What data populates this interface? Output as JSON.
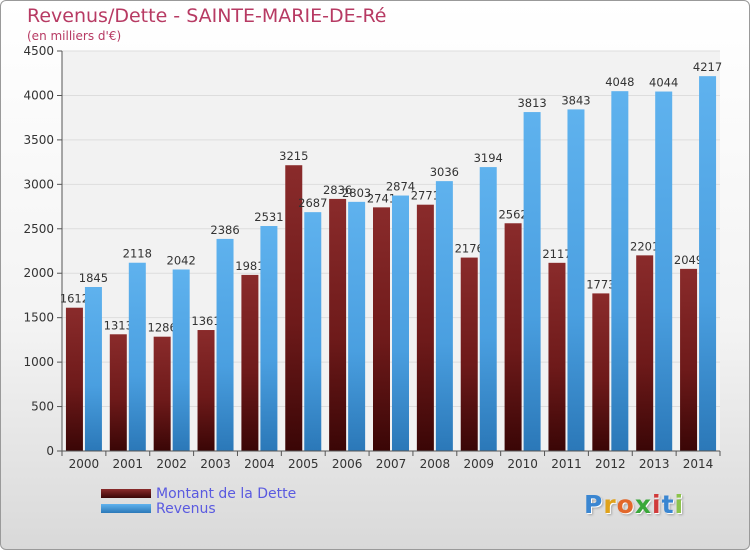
{
  "chart_data": {
    "type": "bar",
    "title": "Revenus/Dette - SAINTE-MARIE-DE-Ré",
    "subtitle": "(en milliers d'€)",
    "categories": [
      "2000",
      "2001",
      "2002",
      "2003",
      "2004",
      "2005",
      "2006",
      "2007",
      "2008",
      "2009",
      "2010",
      "2011",
      "2012",
      "2013",
      "2014"
    ],
    "series": [
      {
        "name": "Montant de la Dette",
        "color": "#7a1c1c",
        "values": [
          1612,
          1313,
          1286,
          1361,
          1981,
          3215,
          2836,
          2741,
          2771,
          2176,
          2562,
          2117,
          1773,
          2201,
          2049
        ],
        "labels": [
          "1612",
          "1313",
          "1286",
          "1361",
          "1981",
          "3215",
          "2836",
          "2741",
          "2771",
          "2176",
          "2562",
          "2117",
          "1773",
          "2201",
          "2049"
        ]
      },
      {
        "name": "Revenus",
        "color": "#4a9fe0",
        "values": [
          1845,
          2118,
          2042,
          2386,
          2531,
          2687,
          2803,
          2874,
          3036,
          3194,
          3813,
          3843,
          4048,
          4044,
          4217
        ],
        "labels": [
          "1845",
          "2118",
          "2042",
          "2386",
          "2531",
          "2687",
          "2803",
          "2874",
          "3036",
          "3194",
          "3813",
          "3843",
          "4048",
          "4044",
          "4217"
        ]
      }
    ],
    "ylim": [
      0,
      4500
    ],
    "yticks": [
      "0",
      "500",
      "1000",
      "1500",
      "2000",
      "2500",
      "3000",
      "3500",
      "4000",
      "4500"
    ],
    "grid": true,
    "legend_position": "bottom-left"
  },
  "logo": {
    "letters": [
      "P",
      "r",
      "o",
      "x",
      "i",
      "t",
      "i"
    ],
    "colors": [
      "#3a86d1",
      "#e0a21a",
      "#e2672a",
      "#3aa83a",
      "#d03a3a",
      "#3a86d1",
      "#8bc34a"
    ]
  }
}
